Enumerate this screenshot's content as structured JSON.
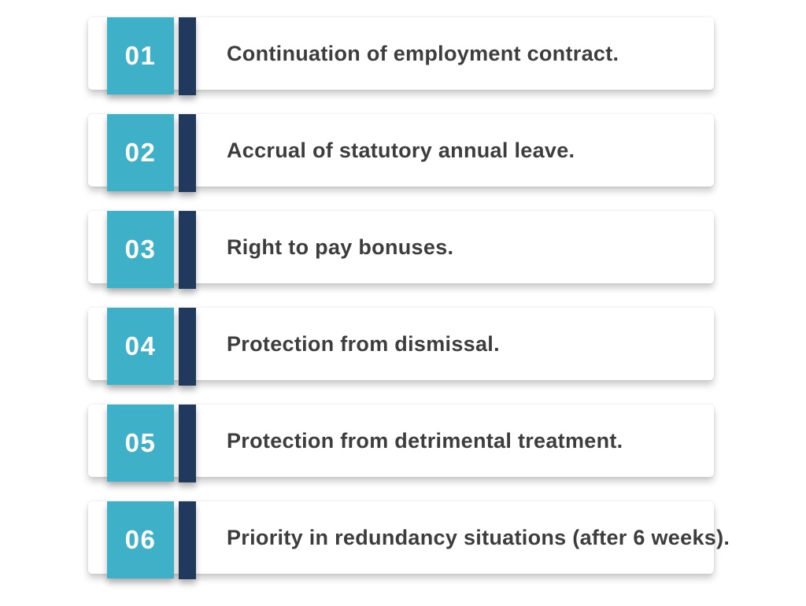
{
  "colors": {
    "teal_accent": "#3EB0C8",
    "navy_accent": "#21395C",
    "card_background": "#FFFFFF",
    "text_color": "#3D3D3D",
    "number_color": "#FFFFFF"
  },
  "items": [
    {
      "number": "01",
      "label": "Continuation of employment contract."
    },
    {
      "number": "02",
      "label": "Accrual of statutory annual leave."
    },
    {
      "number": "03",
      "label": "Right to pay bonuses."
    },
    {
      "number": "04",
      "label": "Protection from dismissal."
    },
    {
      "number": "05",
      "label": "Protection from detrimental treatment."
    },
    {
      "number": "06",
      "label": "Priority in redundancy situations (after 6 weeks)."
    }
  ]
}
